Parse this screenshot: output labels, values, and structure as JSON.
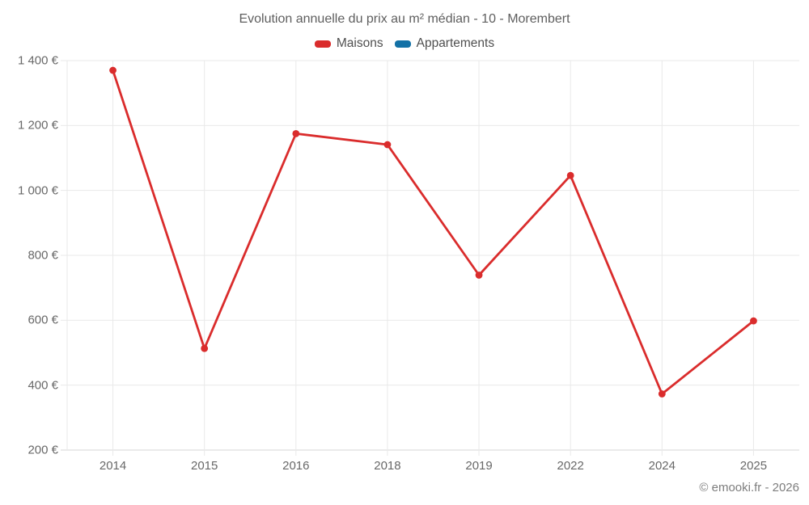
{
  "title": "Evolution annuelle du prix au m² médian - 10 - Morembert",
  "footer": "© emooki.fr - 2026",
  "legend": [
    {
      "label": "Maisons",
      "color": "#da2c2c"
    },
    {
      "label": "Appartements",
      "color": "#1371a6"
    }
  ],
  "colors": {
    "background": "#ffffff",
    "grid": "#e9e9e9",
    "axis": "#d6d6d6",
    "title_text": "#5e5e5e",
    "legend_text": "#4f4f4f",
    "tick_text": "#686868",
    "footer_text": "#7d7d7d",
    "maisons_red": "#da2c2c",
    "appartements_blue": "#1371a6"
  },
  "chart_data": {
    "type": "line",
    "title": "Evolution annuelle du prix au m² médian - 10 - Morembert",
    "categories": [
      "2014",
      "2015",
      "2016",
      "2018",
      "2019",
      "2022",
      "2024",
      "2025"
    ],
    "series": [
      {
        "name": "Maisons",
        "color": "#da2c2c",
        "values": [
          1370,
          513,
          1175,
          1141,
          739,
          1046,
          373,
          598
        ]
      },
      {
        "name": "Appartements",
        "color": "#1371a6",
        "values": []
      }
    ],
    "xlabel": "",
    "ylabel": "",
    "y_unit": "€",
    "ylim": [
      200,
      1400
    ],
    "ytick_step": 200,
    "ytick_labels": [
      "200 €",
      "400 €",
      "600 €",
      "800 €",
      "1 000 €",
      "1 200 €",
      "1 400 €"
    ],
    "grid": true,
    "legend_position": "top"
  }
}
